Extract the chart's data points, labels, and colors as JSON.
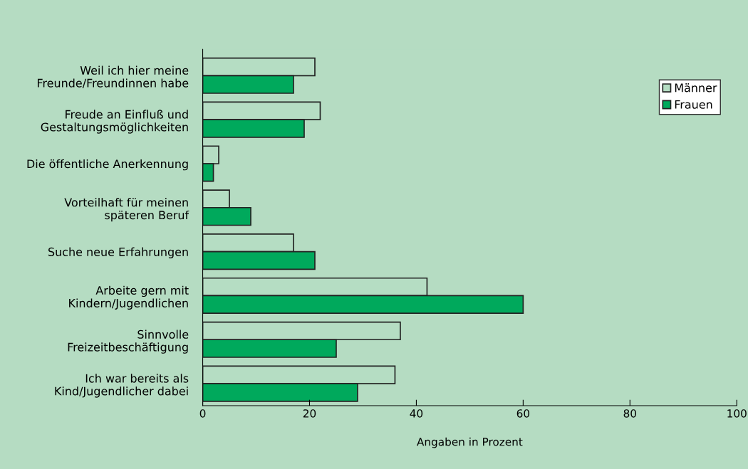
{
  "chart_data": {
    "type": "bar",
    "orientation": "horizontal",
    "categories": [
      "Weil ich hier meine\nFreunde/Freundinnen habe",
      "Freude an Einfluß und\nGestaltungsmöglichkeiten",
      "Die öffentliche Anerkennung",
      "Vorteilhaft für meinen\nspäteren Beruf",
      "Suche neue Erfahrungen",
      "Arbeite gern mit\nKindern/Jugendlichen",
      "Sinnvolle\nFreizeitbeschäftigung",
      "Ich war bereits als\nKind/Jugendlicher dabei"
    ],
    "series": [
      {
        "name": "Männer",
        "color": "#b5ddc3",
        "values": [
          21,
          22,
          3,
          5,
          17,
          42,
          37,
          36
        ]
      },
      {
        "name": "Frauen",
        "color": "#00a95c",
        "values": [
          17,
          19,
          2,
          9,
          21,
          60,
          25,
          29
        ]
      }
    ],
    "xlabel": "Angaben in Prozent",
    "xlim": [
      0,
      100
    ],
    "xticks": [
      0,
      20,
      40,
      60,
      80,
      100
    ],
    "grid": false,
    "legend": "top right"
  }
}
